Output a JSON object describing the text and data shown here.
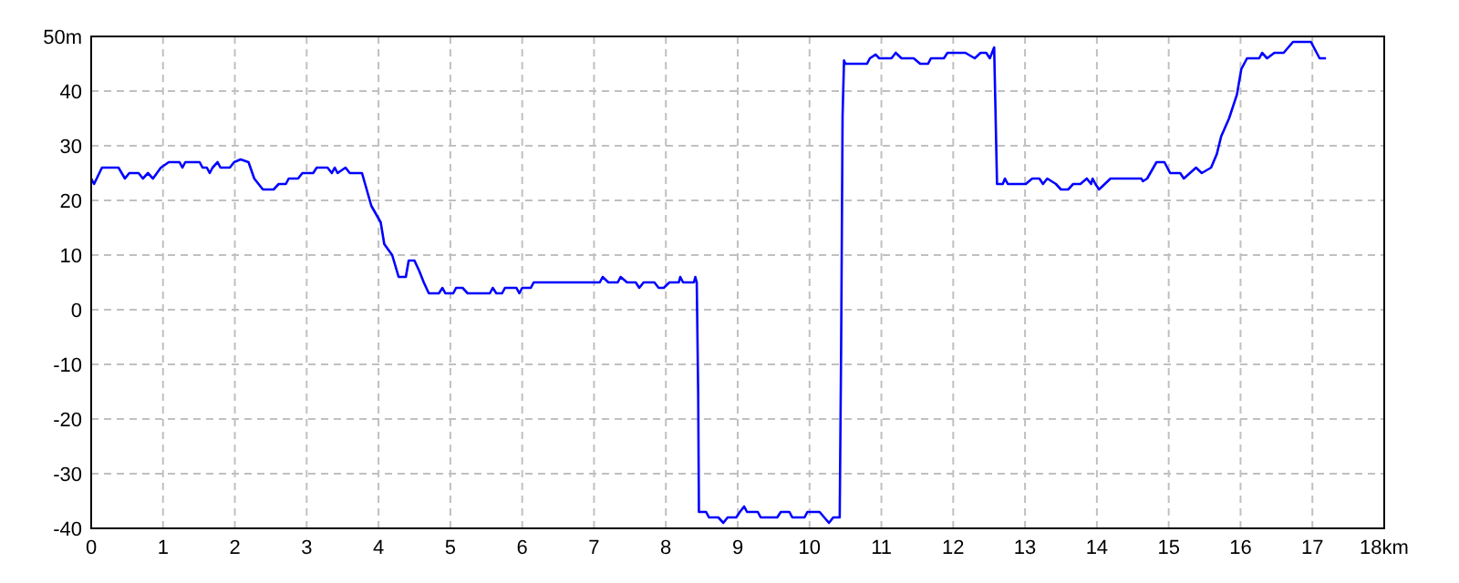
{
  "chart_data": {
    "type": "line",
    "grid": true,
    "line_style": "solid",
    "marker": "none",
    "xlim": [
      0,
      18
    ],
    "ylim": [
      -40,
      50
    ],
    "xticks": [
      0,
      1,
      2,
      3,
      4,
      5,
      6,
      7,
      8,
      9,
      10,
      11,
      12,
      13,
      14,
      15,
      16,
      17,
      {
        "value": 18,
        "label": "18km"
      }
    ],
    "yticks": [
      -40,
      -30,
      -20,
      -10,
      0,
      10,
      20,
      30,
      40,
      {
        "value": 50,
        "label": "50m"
      }
    ],
    "x": [
      0,
      0.04,
      0.15,
      0.38,
      0.47,
      0.53,
      0.66,
      0.72,
      0.79,
      0.86,
      0.97,
      1.08,
      1.23,
      1.27,
      1.31,
      1.51,
      1.55,
      1.61,
      1.65,
      1.69,
      1.76,
      1.8,
      1.93,
      1.99,
      2.08,
      2.19,
      2.27,
      2.39,
      2.54,
      2.61,
      2.71,
      2.75,
      2.88,
      2.94,
      3.09,
      3.14,
      3.29,
      3.35,
      3.39,
      3.43,
      3.54,
      3.6,
      3.77,
      3.9,
      4.03,
      4.08,
      4.19,
      4.28,
      4.38,
      4.42,
      4.5,
      4.57,
      4.63,
      4.7,
      4.84,
      4.89,
      4.93,
      5.04,
      5.08,
      5.17,
      5.24,
      5.55,
      5.59,
      5.64,
      5.72,
      5.76,
      5.92,
      5.96,
      6.0,
      6.12,
      6.16,
      7.08,
      7.12,
      7.2,
      7.33,
      7.37,
      7.46,
      7.58,
      7.63,
      7.69,
      7.84,
      7.9,
      7.97,
      8.05,
      8.18,
      8.2,
      8.24,
      8.39,
      8.41,
      8.43,
      8.45,
      8.46,
      8.56,
      8.6,
      8.73,
      8.8,
      8.86,
      8.98,
      9.03,
      9.09,
      9.13,
      9.28,
      9.32,
      9.55,
      9.6,
      9.72,
      9.76,
      9.93,
      9.97,
      10.14,
      10.27,
      10.33,
      10.42,
      10.44,
      10.46,
      10.48,
      10.5,
      10.8,
      10.84,
      10.92,
      10.97,
      11.14,
      11.2,
      11.28,
      11.45,
      11.54,
      11.65,
      11.69,
      11.87,
      11.92,
      12.17,
      12.3,
      12.38,
      12.46,
      12.51,
      12.57,
      12.61,
      12.69,
      12.72,
      12.76,
      13.01,
      13.1,
      13.2,
      13.25,
      13.31,
      13.43,
      13.5,
      13.6,
      13.67,
      13.77,
      13.86,
      13.92,
      13.94,
      13.98,
      14.03,
      14.11,
      14.19,
      14.62,
      14.64,
      14.7,
      14.83,
      14.94,
      15.02,
      15.16,
      15.21,
      15.38,
      15.46,
      15.59,
      15.67,
      15.73,
      15.84,
      15.95,
      16.01,
      16.09,
      16.26,
      16.3,
      16.37,
      16.47,
      16.6,
      16.73,
      16.98,
      17.1,
      17.19
    ],
    "series": [
      {
        "color": "#0000ff",
        "values": [
          24,
          23,
          26,
          26,
          24,
          25,
          25,
          24,
          25,
          24,
          26,
          27,
          27,
          26,
          27,
          27,
          26,
          26,
          25,
          26,
          27,
          26,
          26,
          27,
          27.5,
          27,
          24,
          22,
          22,
          23,
          23,
          24,
          24,
          25,
          25,
          26,
          26,
          25,
          26,
          25,
          26,
          25,
          25,
          19,
          16,
          12,
          10,
          6,
          6,
          9,
          9,
          7,
          5,
          3,
          3,
          4,
          3,
          3,
          4,
          4,
          3,
          3,
          4,
          3,
          3,
          4,
          4,
          3,
          4,
          4,
          5,
          5,
          6,
          5,
          5,
          6,
          5,
          5,
          4,
          5,
          5,
          4,
          4,
          5,
          5,
          6,
          5,
          5,
          6,
          5,
          -15.5,
          -37,
          -37,
          -38,
          -38,
          -39,
          -38,
          -38,
          -37,
          -36,
          -37,
          -37,
          -38,
          -38,
          -37,
          -37,
          -38,
          -38,
          -37,
          -37,
          -39,
          -38,
          -38,
          -6.7,
          35.6,
          45.6,
          45,
          45,
          46,
          46.7,
          46,
          46,
          47,
          46,
          46,
          45,
          45,
          46,
          46,
          47,
          47,
          46,
          47,
          47,
          46,
          48,
          23,
          23,
          24,
          23,
          23,
          24,
          24,
          23,
          24,
          23,
          22,
          22,
          23,
          23,
          24,
          23,
          24,
          23,
          22,
          23,
          24,
          24,
          23.5,
          24,
          27,
          27,
          25,
          25,
          24,
          26,
          25,
          26,
          28.5,
          31.7,
          35,
          39.4,
          44,
          46,
          46,
          47,
          46,
          47,
          47,
          49,
          49,
          46,
          46
        ]
      }
    ]
  }
}
